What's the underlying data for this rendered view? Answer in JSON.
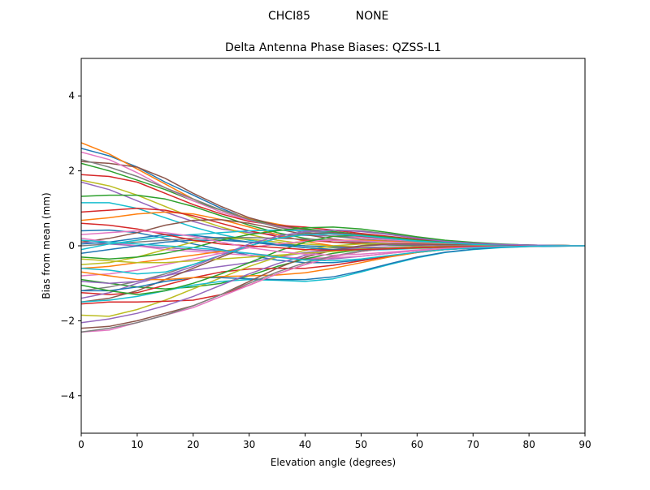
{
  "figure": {
    "suptitle_left": "CHCI85",
    "suptitle_right": "NONE"
  },
  "chart_data": {
    "type": "line",
    "title": "Delta Antenna Phase Biases: QZSS-L1",
    "xlabel": "Elevation angle (degrees)",
    "ylabel": "Bias from mean (mm)",
    "xlim": [
      0,
      90
    ],
    "ylim": [
      -5,
      5
    ],
    "xticks": [
      0,
      10,
      20,
      30,
      40,
      50,
      60,
      70,
      80,
      90
    ],
    "yticks": [
      -4,
      -2,
      0,
      2,
      4
    ],
    "grid": false,
    "legend": "none",
    "x": [
      0,
      5,
      10,
      15,
      20,
      25,
      30,
      35,
      40,
      45,
      50,
      55,
      60,
      65,
      70,
      75,
      80,
      85,
      90
    ],
    "series": [
      {
        "color": "#1f77b4",
        "values": [
          2.6,
          2.4,
          2.1,
          1.7,
          1.35,
          1.0,
          0.7,
          0.55,
          0.45,
          0.35,
          0.28,
          0.2,
          0.13,
          0.08,
          0.05,
          0.03,
          0.02,
          0.01,
          0
        ]
      },
      {
        "color": "#ff7f0e",
        "values": [
          2.75,
          2.45,
          2.05,
          1.65,
          1.25,
          0.95,
          0.72,
          0.58,
          0.45,
          0.35,
          0.25,
          0.18,
          0.12,
          0.07,
          0.04,
          0.02,
          0.01,
          0.0,
          0
        ]
      },
      {
        "color": "#2ca02c",
        "values": [
          2.2,
          2.0,
          1.75,
          1.5,
          1.2,
          0.95,
          0.7,
          0.55,
          0.45,
          0.38,
          0.3,
          0.22,
          0.15,
          0.1,
          0.06,
          0.03,
          0.02,
          0.01,
          0
        ]
      },
      {
        "color": "#d62728",
        "values": [
          1.9,
          1.85,
          1.7,
          1.4,
          1.1,
          0.85,
          0.65,
          0.55,
          0.5,
          0.42,
          0.33,
          0.25,
          0.17,
          0.11,
          0.07,
          0.04,
          0.02,
          0.01,
          0
        ]
      },
      {
        "color": "#9467bd",
        "values": [
          1.7,
          1.5,
          1.2,
          0.9,
          0.65,
          0.45,
          0.35,
          0.3,
          0.28,
          0.26,
          0.22,
          0.17,
          0.12,
          0.08,
          0.05,
          0.03,
          0.01,
          0.0,
          0
        ]
      },
      {
        "color": "#8c564b",
        "values": [
          2.25,
          2.2,
          2.1,
          1.8,
          1.4,
          1.05,
          0.75,
          0.55,
          0.42,
          0.33,
          0.25,
          0.18,
          0.12,
          0.08,
          0.05,
          0.03,
          0.02,
          0.01,
          0
        ]
      },
      {
        "color": "#e377c2",
        "values": [
          2.5,
          2.3,
          1.95,
          1.55,
          1.2,
          0.9,
          0.68,
          0.52,
          0.4,
          0.3,
          0.22,
          0.16,
          0.1,
          0.06,
          0.04,
          0.02,
          0.01,
          0.0,
          0
        ]
      },
      {
        "color": "#7f7f7f",
        "values": [
          2.3,
          2.1,
          1.85,
          1.55,
          1.25,
          0.95,
          0.7,
          0.5,
          0.35,
          0.25,
          0.18,
          0.13,
          0.09,
          0.06,
          0.04,
          0.02,
          0.01,
          0.0,
          0
        ]
      },
      {
        "color": "#bcbd22",
        "values": [
          1.75,
          1.6,
          1.35,
          1.05,
          0.75,
          0.5,
          0.3,
          0.15,
          0.05,
          0.0,
          -0.03,
          -0.04,
          -0.04,
          -0.03,
          -0.02,
          -0.01,
          -0.01,
          0.0,
          0
        ]
      },
      {
        "color": "#17becf",
        "values": [
          1.15,
          1.15,
          1.0,
          0.75,
          0.5,
          0.3,
          0.15,
          0.05,
          -0.05,
          -0.1,
          -0.12,
          -0.1,
          -0.07,
          -0.05,
          -0.03,
          -0.02,
          -0.01,
          0.0,
          0
        ]
      },
      {
        "color": "#1f77b4",
        "values": [
          0.4,
          0.42,
          0.35,
          0.2,
          0.05,
          -0.1,
          -0.25,
          -0.38,
          -0.45,
          -0.45,
          -0.38,
          -0.28,
          -0.18,
          -0.1,
          -0.06,
          -0.03,
          -0.01,
          0.0,
          0
        ]
      },
      {
        "color": "#ff7f0e",
        "values": [
          0.68,
          0.75,
          0.85,
          0.9,
          0.85,
          0.7,
          0.5,
          0.3,
          0.12,
          0.0,
          -0.06,
          -0.07,
          -0.06,
          -0.04,
          -0.03,
          -0.02,
          -0.01,
          0.0,
          0
        ]
      },
      {
        "color": "#2ca02c",
        "values": [
          1.32,
          1.35,
          1.35,
          1.25,
          1.05,
          0.8,
          0.55,
          0.35,
          0.2,
          0.1,
          0.05,
          0.02,
          0.01,
          0.0,
          0.0,
          0.0,
          0.0,
          0.0,
          0
        ]
      },
      {
        "color": "#d62728",
        "values": [
          0.9,
          0.95,
          1.0,
          0.95,
          0.8,
          0.6,
          0.4,
          0.25,
          0.15,
          0.1,
          0.07,
          0.05,
          0.03,
          0.02,
          0.01,
          0.01,
          0.0,
          0.0,
          0
        ]
      },
      {
        "color": "#9467bd",
        "values": [
          0.1,
          0.05,
          0.0,
          -0.05,
          -0.1,
          -0.15,
          -0.2,
          -0.28,
          -0.35,
          -0.35,
          -0.28,
          -0.2,
          -0.13,
          -0.08,
          -0.05,
          -0.03,
          -0.01,
          0.0,
          0
        ]
      },
      {
        "color": "#8c564b",
        "values": [
          0.1,
          0.2,
          0.35,
          0.55,
          0.68,
          0.7,
          0.6,
          0.45,
          0.3,
          0.18,
          0.1,
          0.05,
          0.02,
          0.01,
          0.0,
          0.0,
          0.0,
          0.0,
          0
        ]
      },
      {
        "color": "#e377c2",
        "values": [
          0.2,
          0.1,
          0.0,
          -0.1,
          -0.15,
          -0.2,
          -0.25,
          -0.3,
          -0.33,
          -0.32,
          -0.28,
          -0.2,
          -0.13,
          -0.08,
          -0.05,
          -0.03,
          -0.01,
          0.0,
          0
        ]
      },
      {
        "color": "#7f7f7f",
        "values": [
          0.0,
          0.05,
          0.1,
          0.15,
          0.2,
          0.22,
          0.22,
          0.2,
          0.18,
          0.15,
          0.1,
          0.06,
          0.03,
          0.02,
          0.01,
          0.0,
          0.0,
          0.0,
          0
        ]
      },
      {
        "color": "#bcbd22",
        "values": [
          -0.5,
          -0.45,
          -0.3,
          -0.1,
          0.1,
          0.2,
          0.18,
          0.1,
          0.0,
          -0.05,
          -0.08,
          -0.08,
          -0.06,
          -0.04,
          -0.03,
          -0.02,
          -0.01,
          0.0,
          0
        ]
      },
      {
        "color": "#17becf",
        "values": [
          -0.1,
          0.05,
          0.15,
          0.25,
          0.3,
          0.35,
          0.4,
          0.42,
          0.4,
          0.35,
          0.28,
          0.2,
          0.12,
          0.07,
          0.04,
          0.02,
          0.01,
          0.0,
          0
        ]
      },
      {
        "color": "#1f77b4",
        "values": [
          -0.2,
          -0.1,
          0.0,
          0.1,
          0.15,
          0.15,
          0.1,
          0.05,
          0.0,
          -0.03,
          -0.05,
          -0.05,
          -0.04,
          -0.03,
          -0.02,
          -0.01,
          0.0,
          0.0,
          0
        ]
      },
      {
        "color": "#ff7f0e",
        "values": [
          -0.6,
          -0.55,
          -0.45,
          -0.35,
          -0.25,
          -0.15,
          -0.05,
          0.05,
          0.12,
          0.15,
          0.15,
          0.12,
          0.08,
          0.05,
          0.03,
          0.02,
          0.01,
          0.0,
          0
        ]
      },
      {
        "color": "#2ca02c",
        "values": [
          -0.9,
          -1.0,
          -1.1,
          -1.15,
          -1.1,
          -1.0,
          -0.8,
          -0.55,
          -0.35,
          -0.2,
          -0.1,
          -0.05,
          -0.02,
          -0.01,
          0.0,
          0.0,
          0.0,
          0.0,
          0
        ]
      },
      {
        "color": "#d62728",
        "values": [
          -1.25,
          -1.3,
          -1.25,
          -1.05,
          -0.85,
          -0.7,
          -0.62,
          -0.6,
          -0.6,
          -0.52,
          -0.4,
          -0.28,
          -0.17,
          -0.1,
          -0.06,
          -0.03,
          -0.01,
          0.0,
          0
        ]
      },
      {
        "color": "#9467bd",
        "values": [
          -1.4,
          -1.25,
          -1.0,
          -0.8,
          -0.65,
          -0.55,
          -0.45,
          -0.3,
          -0.18,
          -0.1,
          -0.05,
          -0.03,
          -0.02,
          -0.01,
          0.0,
          0.0,
          0.0,
          0.0,
          0
        ]
      },
      {
        "color": "#8c564b",
        "values": [
          -1.5,
          -1.4,
          -1.2,
          -0.9,
          -0.6,
          -0.3,
          0.0,
          0.2,
          0.32,
          0.35,
          0.3,
          0.22,
          0.14,
          0.08,
          0.05,
          0.03,
          0.01,
          0.0,
          0
        ]
      },
      {
        "color": "#e377c2",
        "values": [
          -0.8,
          -0.75,
          -0.65,
          -0.5,
          -0.35,
          -0.2,
          -0.05,
          0.05,
          0.12,
          0.15,
          0.13,
          0.1,
          0.07,
          0.04,
          0.02,
          0.01,
          0.0,
          0.0,
          0
        ]
      },
      {
        "color": "#7f7f7f",
        "values": [
          -1.2,
          -1.1,
          -0.95,
          -0.75,
          -0.5,
          -0.25,
          0.0,
          0.2,
          0.35,
          0.42,
          0.4,
          0.32,
          0.22,
          0.13,
          0.07,
          0.04,
          0.02,
          0.01,
          0
        ]
      },
      {
        "color": "#bcbd22",
        "values": [
          -1.85,
          -1.88,
          -1.7,
          -1.45,
          -1.15,
          -0.85,
          -0.55,
          -0.3,
          -0.12,
          0.0,
          0.05,
          0.06,
          0.05,
          0.03,
          0.02,
          0.01,
          0.0,
          0.0,
          0
        ]
      },
      {
        "color": "#17becf",
        "values": [
          -1.5,
          -1.45,
          -1.35,
          -1.2,
          -1.05,
          -0.95,
          -0.9,
          -0.92,
          -0.95,
          -0.88,
          -0.7,
          -0.5,
          -0.32,
          -0.18,
          -0.1,
          -0.05,
          -0.02,
          -0.01,
          0
        ]
      },
      {
        "color": "#1f77b4",
        "values": [
          -1.2,
          -1.2,
          -1.1,
          -0.95,
          -0.85,
          -0.85,
          -0.88,
          -0.9,
          -0.9,
          -0.83,
          -0.67,
          -0.48,
          -0.3,
          -0.17,
          -0.09,
          -0.04,
          -0.02,
          -0.01,
          0
        ]
      },
      {
        "color": "#ff7f0e",
        "values": [
          -0.7,
          -0.8,
          -0.9,
          -0.9,
          -0.85,
          -0.82,
          -0.8,
          -0.78,
          -0.72,
          -0.6,
          -0.45,
          -0.3,
          -0.18,
          -0.1,
          -0.05,
          -0.02,
          -0.01,
          0.0,
          0
        ]
      },
      {
        "color": "#2ca02c",
        "values": [
          -1.05,
          -1.2,
          -1.3,
          -1.2,
          -1.0,
          -0.75,
          -0.45,
          -0.15,
          0.1,
          0.25,
          0.28,
          0.23,
          0.15,
          0.09,
          0.05,
          0.03,
          0.01,
          0.0,
          0
        ]
      },
      {
        "color": "#d62728",
        "values": [
          -1.55,
          -1.5,
          -1.5,
          -1.48,
          -1.45,
          -1.3,
          -1.05,
          -0.75,
          -0.5,
          -0.3,
          -0.15,
          -0.06,
          -0.02,
          0.0,
          0.0,
          0.0,
          0.0,
          0.0,
          0
        ]
      },
      {
        "color": "#9467bd",
        "values": [
          -2.05,
          -1.95,
          -1.8,
          -1.6,
          -1.35,
          -1.05,
          -0.75,
          -0.48,
          -0.25,
          -0.1,
          0.0,
          0.03,
          0.03,
          0.02,
          0.01,
          0.0,
          0.0,
          0.0,
          0
        ]
      },
      {
        "color": "#8c564b",
        "values": [
          -2.2,
          -2.15,
          -2.0,
          -1.8,
          -1.6,
          -1.3,
          -0.95,
          -0.6,
          -0.3,
          -0.12,
          0.0,
          0.05,
          0.05,
          0.03,
          0.02,
          0.01,
          0.0,
          0.0,
          0
        ]
      },
      {
        "color": "#e377c2",
        "values": [
          -2.3,
          -2.25,
          -2.05,
          -1.85,
          -1.65,
          -1.35,
          -1.05,
          -0.75,
          -0.5,
          -0.3,
          -0.15,
          -0.06,
          -0.02,
          0.0,
          0.0,
          0.0,
          0.0,
          0.0,
          0
        ]
      },
      {
        "color": "#7f7f7f",
        "values": [
          -2.3,
          -2.2,
          -2.05,
          -1.85,
          -1.6,
          -1.3,
          -1.0,
          -0.7,
          -0.45,
          -0.27,
          -0.14,
          -0.06,
          -0.02,
          0.0,
          0.0,
          0.0,
          0.0,
          0.0,
          0
        ]
      },
      {
        "color": "#bcbd22",
        "values": [
          -0.35,
          -0.4,
          -0.45,
          -0.45,
          -0.4,
          -0.35,
          -0.3,
          -0.25,
          -0.2,
          -0.15,
          -0.1,
          -0.06,
          -0.03,
          -0.02,
          -0.01,
          0.0,
          0.0,
          0.0,
          0
        ]
      },
      {
        "color": "#17becf",
        "values": [
          -0.6,
          -0.65,
          -0.75,
          -0.7,
          -0.5,
          -0.25,
          0.0,
          0.2,
          0.3,
          0.32,
          0.27,
          0.2,
          0.13,
          0.08,
          0.04,
          0.02,
          0.01,
          0.0,
          0
        ]
      },
      {
        "color": "#1f77b4",
        "values": [
          0.05,
          0.1,
          0.2,
          0.3,
          0.28,
          0.2,
          0.1,
          0.02,
          -0.05,
          -0.1,
          -0.1,
          -0.08,
          -0.05,
          -0.03,
          -0.02,
          -0.01,
          0.0,
          0.0,
          0
        ]
      },
      {
        "color": "#2ca02c",
        "values": [
          -0.3,
          -0.35,
          -0.3,
          -0.2,
          -0.05,
          0.15,
          0.3,
          0.4,
          0.48,
          0.5,
          0.45,
          0.35,
          0.24,
          0.15,
          0.09,
          0.05,
          0.02,
          0.01,
          0
        ]
      },
      {
        "color": "#d62728",
        "values": [
          0.6,
          0.55,
          0.45,
          0.3,
          0.15,
          0.05,
          0.0,
          -0.05,
          -0.1,
          -0.12,
          -0.1,
          -0.08,
          -0.05,
          -0.03,
          -0.02,
          -0.01,
          0.0,
          0.0,
          0
        ]
      },
      {
        "color": "#9467bd",
        "values": [
          -0.95,
          -1.0,
          -0.95,
          -0.8,
          -0.55,
          -0.25,
          0.05,
          0.25,
          0.38,
          0.42,
          0.38,
          0.3,
          0.2,
          0.12,
          0.07,
          0.04,
          0.02,
          0.01,
          0
        ]
      },
      {
        "color": "#e377c2",
        "values": [
          0.3,
          0.35,
          0.4,
          0.35,
          0.25,
          0.1,
          -0.05,
          -0.15,
          -0.22,
          -0.25,
          -0.22,
          -0.17,
          -0.11,
          -0.07,
          -0.04,
          -0.02,
          -0.01,
          0.0,
          0
        ]
      },
      {
        "color": "#17becf",
        "values": [
          0.15,
          0.1,
          0.05,
          0.0,
          -0.05,
          -0.12,
          -0.2,
          -0.3,
          -0.38,
          -0.4,
          -0.35,
          -0.26,
          -0.17,
          -0.1,
          -0.06,
          -0.03,
          -0.01,
          0.0,
          0
        ]
      }
    ]
  }
}
